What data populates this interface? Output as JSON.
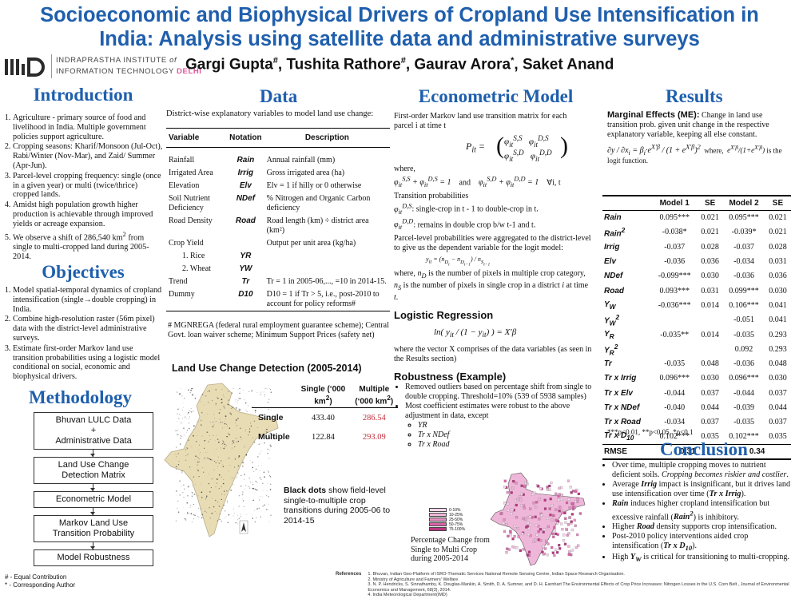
{
  "title": {
    "line1": "Socioeconomic and Biophysical Drivers of Cropland Use Intensification in",
    "line2": "India: Analysis using satellite data and administrative surveys"
  },
  "logo": {
    "line1": "INDRAPRASTHA INSTITUTE",
    "line1_of": "of",
    "line2": "INFORMATION TECHNOLOGY",
    "line2_delhi": "DELHI"
  },
  "authors": [
    {
      "name": "Gargi Gupta",
      "mark": "#"
    },
    {
      "name": "Tushita Rathore",
      "mark": "#"
    },
    {
      "name": "Gaurav Arora",
      "mark": "*"
    },
    {
      "name": "Saket Anand",
      "mark": ""
    }
  ],
  "introduction": {
    "heading": "Introduction",
    "items": [
      "Agriculture - primary source of food and livelihood in India. Multiple government policies support agriculture.",
      "Cropping seasons: Kharif/Monsoon (Jul-Oct), Rabi/Winter (Nov-Mar), and Zaid/ Summer (Apr-Jun).",
      "Parcel-level cropping frequency: single (once in a given year) or multi (twice/thrice) cropped lands.",
      "Amidst high population growth higher production is achievable through improved yields or acreage expansion.",
      "We observe a shift of 286,540 km² from single to multi-cropped land during 2005-2014."
    ]
  },
  "objectives": {
    "heading": "Objectives",
    "items": [
      "Model spatial-temporal dynamics of cropland intensification (single→double cropping) in India.",
      "Combine high-resolution raster (56m pixel) data with the district-level administrative surveys.",
      "Estimate first-order Markov land use transition probabilities using a logistic model conditional on social, economic and biophysical drivers."
    ]
  },
  "methodology": {
    "heading": "Methodology",
    "steps": [
      [
        "Bhuvan LULC Data",
        "+",
        "Administrative Data"
      ],
      [
        "Land Use Change",
        "Detection Matrix"
      ],
      [
        "Econometric Model"
      ],
      [
        "Markov Land Use",
        "Transition Probability"
      ],
      [
        "Model Robustness"
      ]
    ]
  },
  "footnotes": {
    "equal": "# - Equal Contribution",
    "corresponding": "* - Corresponding Author"
  },
  "data": {
    "heading": "Data",
    "intro": "District-wise explanatory variables to model land use change:",
    "columns": [
      "Variable",
      "Notation",
      "Description"
    ],
    "rows": [
      {
        "variable": "Rainfall",
        "notation": "Rain",
        "description": "Annual rainfall (mm)"
      },
      {
        "variable": "Irrigated Area",
        "notation": "Irrig",
        "description": "Gross irrigated area (ha)"
      },
      {
        "variable": "Elevation",
        "notation": "Elv",
        "description": "Elv = 1 if hilly or 0 otherwise"
      },
      {
        "variable": "Soil Nutrient Deficiency",
        "notation": "NDef",
        "description": "% Nitrogen and Organic Carbon deficiency"
      },
      {
        "variable": "Road Density",
        "notation": "Road",
        "description": "Road length (km) ÷ district area (km²)"
      },
      {
        "variable": "Crop Yield",
        "notation": "",
        "description": "Output per unit area (kg/ha)"
      },
      {
        "variable": "1. Rice",
        "notation": "YR",
        "description": ""
      },
      {
        "variable": "2. Wheat",
        "notation": "YW",
        "description": ""
      },
      {
        "variable": "Trend",
        "notation": "Tr",
        "description": "Tr = 1 in 2005-06,..., =10 in 2014-15."
      },
      {
        "variable": "Dummy",
        "notation": "D10",
        "description": "D10 = 1 if Tr > 5, i.e., post-2010 to account for policy reforms#"
      }
    ],
    "footnote": "# MGNREGA (federal rural employment guarantee scheme); Central Govt. loan waiver scheme; Minimum Support Prices (safety net)"
  },
  "landuse": {
    "heading": "Land Use Change Detection (2005-2014)",
    "col_single": "Single (‘000 km²)",
    "col_multiple": "Multiple (‘000 km²)",
    "rows": [
      {
        "label": "Single",
        "single": "433.40",
        "multiple": "286.54"
      },
      {
        "label": "Multiple",
        "single": "122.84",
        "multiple": "293.09"
      }
    ],
    "map_note_bold": "Black dots",
    "map_note": "show field-level single-to-multiple crop transitions during 2005-06 to 2014-15"
  },
  "econometric": {
    "heading": "Econometric Model",
    "p1": "First-order Markov land use transition matrix for each parcel i at time t",
    "where": "where,",
    "and": "and",
    "forall": "∀i, t",
    "tp_head": "Transition probabilities",
    "tp1": ": single-crop in t - 1 to double-crop in t.",
    "tp2": ": remains in double crop b/w t-1 and t.",
    "p2": "Parcel-level probabilities were aggregated to the district-level to give us the dependent variable for the logit model:",
    "p3": "where, n_D is the number of pixels in multiple crop category, n_S is the number of pixels in single crop in a district i at time t."
  },
  "logistic": {
    "heading": "Logistic Regression",
    "p": "where the vector X comprises of the data variables (as seen in the Results section)"
  },
  "robustness": {
    "heading": "Robustness (Example)",
    "items": [
      "Removed outliers based on percentage shift from single to double cropping. Threshold=10% (539 of 5938 samples)",
      "Most coefficient estimates were robust to the above adjustment in data, except"
    ],
    "sub": [
      "YR",
      "Tr x NDef",
      "Tr x Road"
    ],
    "map_caption": "Percentage Change from Single to Multi Crop during 2005-2014",
    "legend": [
      {
        "label": "0-10%",
        "color": "#f3d6ea"
      },
      {
        "label": "10-25%",
        "color": "#eeb6d8"
      },
      {
        "label": "25-50%",
        "color": "#e58fc3"
      },
      {
        "label": "50-75%",
        "color": "#d964a8"
      },
      {
        "label": "75-100%",
        "color": "#b8357f"
      }
    ]
  },
  "results": {
    "heading": "Results",
    "me_bold": "Marginal Effects (ME):",
    "me_text": "Change in land use transition prob. given unit change in the respective explanatory variable, keeping all else constant.",
    "where": "where,",
    "logit": "is the logit function.",
    "columns": [
      "",
      "Model 1",
      "SE",
      "Model 2",
      "SE"
    ],
    "rows": [
      {
        "v": "Rain",
        "m1": "0.095***",
        "se1": "0.021",
        "m2": "0.095***",
        "se2": "0.021"
      },
      {
        "v": "Rain²",
        "m1": "-0.038*",
        "se1": "0.021",
        "m2": "-0.039*",
        "se2": "0.021"
      },
      {
        "v": "Irrig",
        "m1": "-0.037",
        "se1": "0.028",
        "m2": "-0.037",
        "se2": "0.028"
      },
      {
        "v": "Elv",
        "m1": "-0.036",
        "se1": "0.036",
        "m2": "-0.034",
        "se2": "0.031"
      },
      {
        "v": "NDef",
        "m1": "-0.099***",
        "se1": "0.030",
        "m2": "-0.036",
        "se2": "0.036"
      },
      {
        "v": "Road",
        "m1": "0.093***",
        "se1": "0.031",
        "m2": "0.099***",
        "se2": "0.030"
      },
      {
        "v": "YW",
        "m1": "-0.036***",
        "se1": "0.014",
        "m2": "0.106***",
        "se2": "0.041"
      },
      {
        "v": "YW²",
        "m1": "",
        "se1": "",
        "m2": "-0.051",
        "se2": "0.041"
      },
      {
        "v": "YR",
        "m1": "-0.035**",
        "se1": "0.014",
        "m2": "-0.035",
        "se2": "0.293"
      },
      {
        "v": "YR²",
        "m1": "",
        "se1": "",
        "m2": "0.092",
        "se2": "0.293"
      },
      {
        "v": "Tr",
        "m1": "-0.035",
        "se1": "0.048",
        "m2": "-0.036",
        "se2": "0.048"
      },
      {
        "v": "Tr x Irrig",
        "m1": "0.096***",
        "se1": "0.030",
        "m2": "0.096***",
        "se2": "0.030"
      },
      {
        "v": "Tr x Elv",
        "m1": "-0.044",
        "se1": "0.037",
        "m2": "-0.044",
        "se2": "0.037"
      },
      {
        "v": "Tr x NDef",
        "m1": "-0.040",
        "se1": "0.044",
        "m2": "-0.039",
        "se2": "0.044"
      },
      {
        "v": "Tr x Road",
        "m1": "-0.034",
        "se1": "0.037",
        "m2": "-0.035",
        "se2": "0.037"
      },
      {
        "v": "Tr x D10",
        "m1": "0.102***",
        "se1": "0.035",
        "m2": "0.102***",
        "se2": "0.035"
      }
    ],
    "rmse_label": "RMSE",
    "rmse1": "0.31",
    "rmse2": "0.34",
    "significance": "***p<0.01, **p<0.05, *p<0.1"
  },
  "conclusion": {
    "heading": "Conclusion",
    "items": [
      "Over time, multiple cropping moves to nutrient deficient soils. Cropping becomes riskier and costlier.",
      "Average Irrig impact is insignificant, but it drives land use intensification over time (Tr x Irrig).",
      "Rain induces higher cropland intensification but excessive rainfall (Rain²) is inhibitory.",
      "Higher Road density supports crop intensification.",
      "Post-2010 policy interventions aided crop intensification (Tr x D10).",
      "High YW is critical for transitioning to multi-cropping."
    ]
  },
  "references": {
    "label": "References",
    "items": [
      "1. Bhuvan, Indian Geo-Platform of ISRO-Thematic Services National Remote Sensing Centre, Indian Space Research Organisation.",
      "2. Ministry of Agriculture and Farmers' Welfare",
      "3. N. P. Hendricks, S. Sinnathamby, K. Douglas-Mankin, A. Smith, D. A. Sumner, and D. H. Earnhart The Environmental Effects of Crop Price Increases: Nitrogen Losses in the U.S. Corn Belt , Journal of Environmental Economics and Management, 68(3), 2014.",
      "4. India Meteorological Department(IMD)"
    ]
  }
}
